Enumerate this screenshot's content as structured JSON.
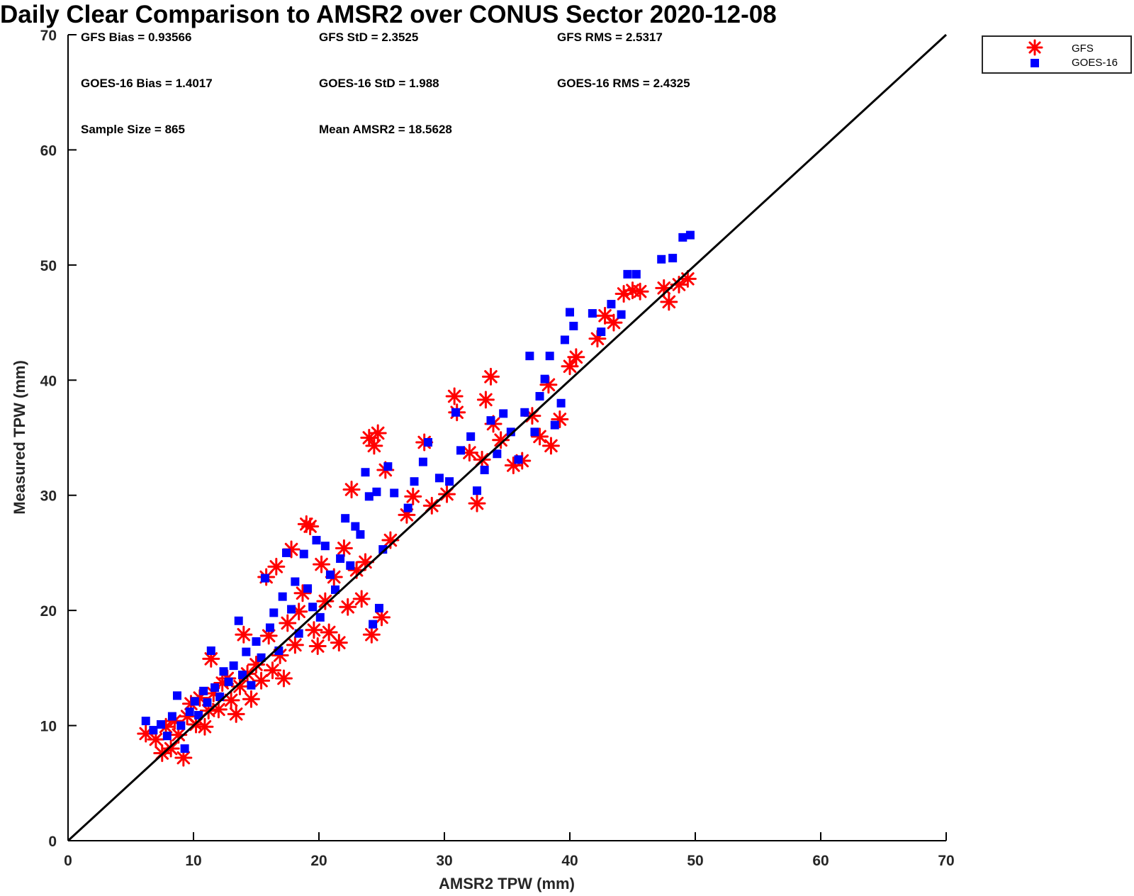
{
  "chart_data": {
    "type": "scatter",
    "title": "Daily Clear Comparison to AMSR2 over CONUS Sector 2020-12-08",
    "xlabel": "AMSR2 TPW (mm)",
    "ylabel": "Measured TPW (mm)",
    "xlim": [
      0,
      70
    ],
    "ylim": [
      0,
      70
    ],
    "xticks": [
      0,
      10,
      20,
      30,
      40,
      50,
      60,
      70
    ],
    "yticks": [
      0,
      10,
      20,
      30,
      40,
      50,
      60,
      70
    ],
    "grid": false,
    "legend_position": "outside-top-right",
    "one_to_one_line": {
      "from": [
        0,
        0
      ],
      "to": [
        70,
        70
      ],
      "color": "#000000"
    },
    "stats": [
      "GFS Bias = 0.93566",
      "GFS StD = 2.3525",
      "GFS RMS = 2.5317",
      "GOES-16 Bias = 1.4017",
      "GOES-16 StD = 1.988",
      "GOES-16 RMS = 2.4325",
      "Sample Size = 865",
      "Mean AMSR2 = 18.5628"
    ],
    "series": [
      {
        "name": "GFS",
        "marker": "asterisk",
        "color": "#ff0000",
        "points": [
          [
            6.2,
            9.3
          ],
          [
            7.0,
            8.8
          ],
          [
            7.5,
            7.6
          ],
          [
            7.8,
            9.9
          ],
          [
            8.2,
            8.0
          ],
          [
            8.5,
            10.4
          ],
          [
            8.8,
            9.2
          ],
          [
            9.2,
            7.2
          ],
          [
            9.5,
            10.8
          ],
          [
            9.8,
            11.9
          ],
          [
            10.2,
            10.1
          ],
          [
            10.5,
            12.4
          ],
          [
            10.9,
            9.9
          ],
          [
            11.2,
            11.3
          ],
          [
            11.4,
            15.8
          ],
          [
            11.6,
            12.8
          ],
          [
            12.0,
            11.4
          ],
          [
            12.3,
            13.7
          ],
          [
            12.7,
            14.1
          ],
          [
            13.0,
            12.2
          ],
          [
            13.4,
            11.0
          ],
          [
            13.7,
            13.4
          ],
          [
            14.0,
            17.9
          ],
          [
            14.3,
            14.5
          ],
          [
            14.6,
            12.3
          ],
          [
            15.0,
            15.3
          ],
          [
            15.4,
            13.9
          ],
          [
            15.8,
            22.9
          ],
          [
            16.0,
            17.8
          ],
          [
            16.3,
            14.8
          ],
          [
            16.6,
            23.8
          ],
          [
            16.9,
            16.1
          ],
          [
            17.2,
            14.1
          ],
          [
            17.5,
            18.9
          ],
          [
            17.8,
            25.3
          ],
          [
            18.1,
            17.0
          ],
          [
            18.4,
            19.9
          ],
          [
            18.7,
            21.5
          ],
          [
            19.0,
            27.5
          ],
          [
            19.3,
            27.3
          ],
          [
            19.6,
            18.3
          ],
          [
            19.9,
            16.9
          ],
          [
            20.2,
            24.0
          ],
          [
            20.5,
            20.8
          ],
          [
            20.8,
            18.1
          ],
          [
            21.2,
            22.9
          ],
          [
            21.6,
            17.2
          ],
          [
            22.0,
            25.4
          ],
          [
            22.3,
            20.3
          ],
          [
            22.6,
            30.5
          ],
          [
            23.0,
            23.5
          ],
          [
            23.4,
            21.0
          ],
          [
            23.7,
            24.2
          ],
          [
            24.0,
            35.0
          ],
          [
            24.2,
            17.9
          ],
          [
            24.4,
            34.3
          ],
          [
            24.7,
            35.4
          ],
          [
            25.0,
            19.4
          ],
          [
            25.3,
            32.2
          ],
          [
            25.7,
            26.1
          ],
          [
            27.0,
            28.3
          ],
          [
            27.5,
            29.9
          ],
          [
            28.4,
            34.6
          ],
          [
            29.0,
            29.1
          ],
          [
            30.2,
            30.1
          ],
          [
            30.8,
            38.6
          ],
          [
            31.0,
            37.2
          ],
          [
            32.0,
            33.7
          ],
          [
            32.6,
            29.3
          ],
          [
            33.0,
            33.1
          ],
          [
            33.3,
            38.3
          ],
          [
            33.7,
            40.3
          ],
          [
            33.9,
            36.2
          ],
          [
            34.5,
            34.8
          ],
          [
            35.5,
            32.6
          ],
          [
            36.2,
            33.0
          ],
          [
            37.0,
            36.9
          ],
          [
            37.6,
            35.1
          ],
          [
            38.3,
            39.6
          ],
          [
            38.5,
            34.3
          ],
          [
            39.2,
            36.6
          ],
          [
            40.0,
            41.2
          ],
          [
            40.5,
            42.0
          ],
          [
            42.2,
            43.6
          ],
          [
            42.8,
            45.6
          ],
          [
            43.5,
            45.0
          ],
          [
            44.3,
            47.5
          ],
          [
            45.0,
            47.8
          ],
          [
            45.6,
            47.7
          ],
          [
            47.5,
            48.0
          ],
          [
            47.9,
            46.8
          ],
          [
            48.7,
            48.3
          ],
          [
            49.4,
            48.8
          ]
        ]
      },
      {
        "name": "GOES-16",
        "marker": "square",
        "color": "#0000ff",
        "points": [
          [
            6.2,
            10.4
          ],
          [
            6.8,
            9.6
          ],
          [
            7.4,
            10.1
          ],
          [
            7.9,
            9.1
          ],
          [
            8.3,
            10.8
          ],
          [
            8.7,
            12.6
          ],
          [
            9.0,
            10.0
          ],
          [
            9.3,
            8.0
          ],
          [
            9.7,
            11.2
          ],
          [
            10.1,
            12.1
          ],
          [
            10.4,
            10.9
          ],
          [
            10.8,
            13.0
          ],
          [
            11.1,
            12.0
          ],
          [
            11.4,
            16.5
          ],
          [
            11.7,
            13.3
          ],
          [
            12.1,
            12.5
          ],
          [
            12.4,
            14.7
          ],
          [
            12.8,
            13.8
          ],
          [
            13.2,
            15.2
          ],
          [
            13.6,
            19.1
          ],
          [
            13.9,
            14.4
          ],
          [
            14.2,
            16.4
          ],
          [
            14.6,
            13.5
          ],
          [
            15.0,
            17.3
          ],
          [
            15.4,
            15.9
          ],
          [
            15.7,
            22.8
          ],
          [
            16.1,
            18.5
          ],
          [
            16.4,
            19.8
          ],
          [
            16.8,
            16.5
          ],
          [
            17.1,
            21.2
          ],
          [
            17.4,
            25.0
          ],
          [
            17.8,
            20.1
          ],
          [
            18.1,
            22.5
          ],
          [
            18.4,
            18.0
          ],
          [
            18.8,
            24.9
          ],
          [
            19.1,
            21.9
          ],
          [
            19.5,
            20.3
          ],
          [
            19.8,
            26.1
          ],
          [
            20.1,
            19.4
          ],
          [
            20.5,
            25.6
          ],
          [
            20.9,
            23.1
          ],
          [
            21.3,
            21.8
          ],
          [
            21.7,
            24.5
          ],
          [
            22.1,
            28.0
          ],
          [
            22.5,
            23.9
          ],
          [
            22.9,
            27.3
          ],
          [
            23.3,
            26.6
          ],
          [
            23.7,
            32.0
          ],
          [
            24.0,
            29.9
          ],
          [
            24.3,
            18.8
          ],
          [
            24.6,
            30.3
          ],
          [
            24.8,
            20.2
          ],
          [
            25.1,
            25.3
          ],
          [
            25.5,
            32.5
          ],
          [
            26.0,
            30.2
          ],
          [
            27.1,
            28.9
          ],
          [
            27.6,
            31.2
          ],
          [
            28.3,
            32.9
          ],
          [
            28.7,
            34.6
          ],
          [
            29.6,
            31.5
          ],
          [
            30.4,
            31.2
          ],
          [
            30.9,
            37.2
          ],
          [
            31.3,
            33.9
          ],
          [
            32.1,
            35.1
          ],
          [
            32.6,
            30.4
          ],
          [
            33.2,
            32.2
          ],
          [
            33.7,
            36.5
          ],
          [
            34.2,
            33.6
          ],
          [
            34.7,
            37.1
          ],
          [
            35.3,
            35.5
          ],
          [
            35.9,
            33.1
          ],
          [
            36.4,
            37.2
          ],
          [
            36.8,
            42.1
          ],
          [
            37.2,
            35.5
          ],
          [
            37.6,
            38.6
          ],
          [
            38.0,
            40.1
          ],
          [
            38.4,
            42.1
          ],
          [
            38.8,
            36.1
          ],
          [
            39.3,
            38.0
          ],
          [
            39.6,
            43.5
          ],
          [
            40.0,
            45.9
          ],
          [
            40.3,
            44.7
          ],
          [
            41.8,
            45.8
          ],
          [
            42.5,
            44.2
          ],
          [
            43.3,
            46.6
          ],
          [
            44.1,
            45.7
          ],
          [
            44.6,
            49.2
          ],
          [
            45.3,
            49.2
          ],
          [
            47.3,
            50.5
          ],
          [
            48.2,
            50.6
          ],
          [
            49.0,
            52.4
          ],
          [
            49.6,
            52.6
          ]
        ]
      }
    ]
  }
}
